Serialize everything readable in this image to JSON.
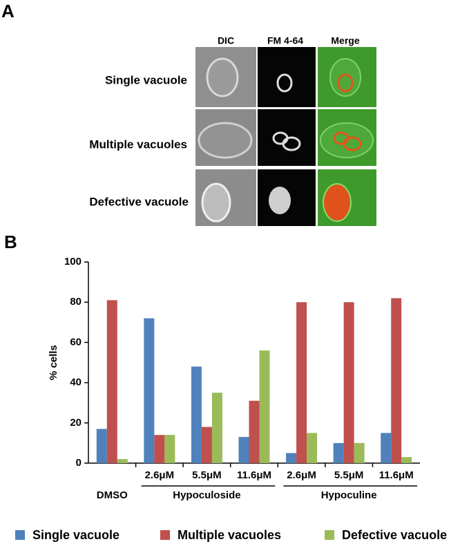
{
  "panel_labels": [
    "A",
    "B"
  ],
  "microscopy": {
    "columns": [
      "DIC",
      "FM 4-64",
      "Merge"
    ],
    "rows": [
      "Single vacuole",
      "Multiple vacuoles",
      "Defective vacuole"
    ]
  },
  "chart_data": {
    "type": "bar",
    "categories": [
      null,
      "2.6μM",
      "5.5μM",
      "11.6μM",
      "2.6μM",
      "5.5μM",
      "11.6μM"
    ],
    "groups": [
      {
        "name": "DMSO",
        "size": 1
      },
      {
        "name": "Hypoculoside",
        "size": 3
      },
      {
        "name": "Hypoculine",
        "size": 3
      }
    ],
    "y_label": "% cells",
    "ylim": [
      0,
      100
    ],
    "yticks": [
      0,
      20,
      40,
      60,
      80,
      100
    ],
    "series": [
      {
        "name": "Single vacuole",
        "color": "#4f81bd",
        "values": [
          17,
          72,
          48,
          13,
          5,
          10,
          15
        ]
      },
      {
        "name": "Multiple vacuoles",
        "color": "#c0504d",
        "values": [
          81,
          14,
          18,
          31,
          80,
          80,
          82
        ]
      },
      {
        "name": "Defective vacuole",
        "color": "#9bbb59",
        "values": [
          2,
          14,
          35,
          56,
          15,
          10,
          3
        ]
      }
    ]
  }
}
